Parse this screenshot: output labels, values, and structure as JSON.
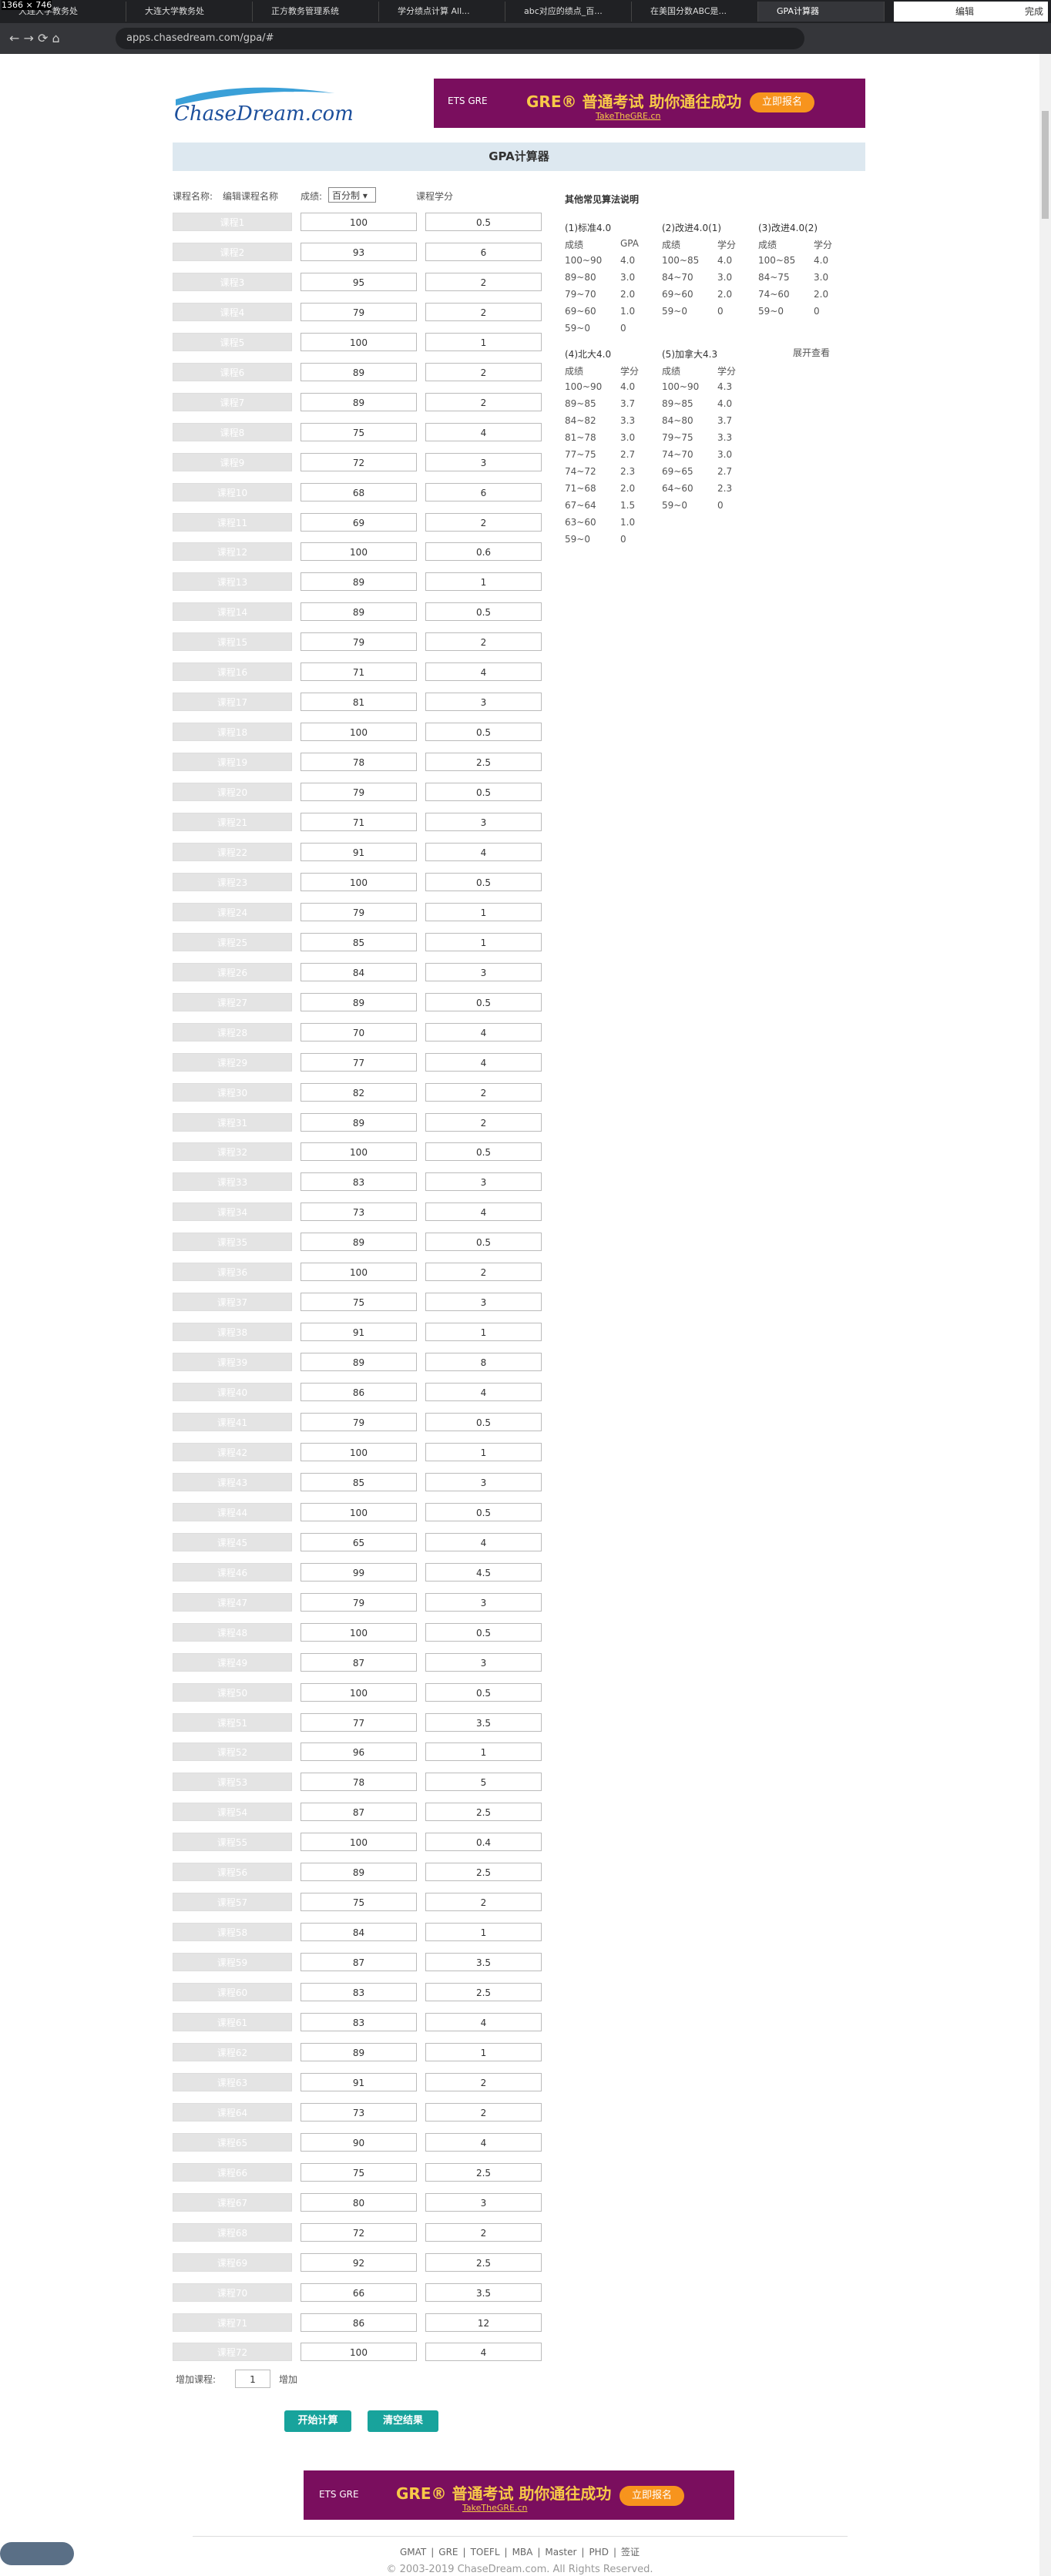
{
  "browser": {
    "size_label": "1366 × 746",
    "tabs": [
      "大连大学教务处",
      "大连大学教务处",
      "正方教务管理系统",
      "学分绩点计算 All...",
      "abc对应的绩点_百...",
      "在美国分数ABC是...",
      "GPA计算器"
    ],
    "url": "apps.chasedream.com/gpa/#",
    "right_buttons": [
      "编辑",
      "完成"
    ]
  },
  "header": {
    "logo": "ChaseDream.com",
    "banner": {
      "ets": "ETS GRE",
      "slogan": "GRE® 普通考试 助你通往成功",
      "site": "TakeTheGRE.cn",
      "button": "立即报名"
    },
    "title": "GPA计算器"
  },
  "form": {
    "name_label": "课程名称:",
    "edit_link": "编辑课程名称",
    "score_label": "成绩:",
    "score_mode": "百分制",
    "credit_label": "课程学分",
    "courses": [
      [
        "课程1",
        100,
        "0.5"
      ],
      [
        "课程2",
        93,
        "6"
      ],
      [
        "课程3",
        95,
        "2"
      ],
      [
        "课程4",
        79,
        "2"
      ],
      [
        "课程5",
        100,
        "1"
      ],
      [
        "课程6",
        89,
        "2"
      ],
      [
        "课程7",
        89,
        "2"
      ],
      [
        "课程8",
        75,
        "4"
      ],
      [
        "课程9",
        72,
        "3"
      ],
      [
        "课程10",
        68,
        "6"
      ],
      [
        "课程11",
        69,
        "2"
      ],
      [
        "课程12",
        100,
        "0.6"
      ],
      [
        "课程13",
        89,
        "1"
      ],
      [
        "课程14",
        89,
        "0.5"
      ],
      [
        "课程15",
        79,
        "2"
      ],
      [
        "课程16",
        71,
        "4"
      ],
      [
        "课程17",
        81,
        "3"
      ],
      [
        "课程18",
        100,
        "0.5"
      ],
      [
        "课程19",
        78,
        "2.5"
      ],
      [
        "课程20",
        79,
        "0.5"
      ],
      [
        "课程21",
        71,
        "3"
      ],
      [
        "课程22",
        91,
        "4"
      ],
      [
        "课程23",
        100,
        "0.5"
      ],
      [
        "课程24",
        79,
        "1"
      ],
      [
        "课程25",
        85,
        "1"
      ],
      [
        "课程26",
        84,
        "3"
      ],
      [
        "课程27",
        89,
        "0.5"
      ],
      [
        "课程28",
        70,
        "4"
      ],
      [
        "课程29",
        77,
        "4"
      ],
      [
        "课程30",
        82,
        "2"
      ],
      [
        "课程31",
        89,
        "2"
      ],
      [
        "课程32",
        100,
        "0.5"
      ],
      [
        "课程33",
        83,
        "3"
      ],
      [
        "课程34",
        73,
        "4"
      ],
      [
        "课程35",
        89,
        "0.5"
      ],
      [
        "课程36",
        100,
        "2"
      ],
      [
        "课程37",
        75,
        "3"
      ],
      [
        "课程38",
        91,
        "1"
      ],
      [
        "课程39",
        89,
        "8"
      ],
      [
        "课程40",
        86,
        "4"
      ],
      [
        "课程41",
        79,
        "0.5"
      ],
      [
        "课程42",
        100,
        "1"
      ],
      [
        "课程43",
        85,
        "3"
      ],
      [
        "课程44",
        100,
        "0.5"
      ],
      [
        "课程45",
        65,
        "4"
      ],
      [
        "课程46",
        99,
        "4.5"
      ],
      [
        "课程47",
        79,
        "3"
      ],
      [
        "课程48",
        100,
        "0.5"
      ],
      [
        "课程49",
        87,
        "3"
      ],
      [
        "课程50",
        100,
        "0.5"
      ],
      [
        "课程51",
        77,
        "3.5"
      ],
      [
        "课程52",
        96,
        "1"
      ],
      [
        "课程53",
        78,
        "5"
      ],
      [
        "课程54",
        87,
        "2.5"
      ],
      [
        "课程55",
        100,
        "0.4"
      ],
      [
        "课程56",
        89,
        "2.5"
      ],
      [
        "课程57",
        75,
        "2"
      ],
      [
        "课程58",
        84,
        "1"
      ],
      [
        "课程59",
        87,
        "3.5"
      ],
      [
        "课程60",
        83,
        "2.5"
      ],
      [
        "课程61",
        83,
        "4"
      ],
      [
        "课程62",
        89,
        "1"
      ],
      [
        "课程63",
        91,
        "2"
      ],
      [
        "课程64",
        73,
        "2"
      ],
      [
        "课程65",
        90,
        "4"
      ],
      [
        "课程66",
        75,
        "2.5"
      ],
      [
        "课程67",
        80,
        "3"
      ],
      [
        "课程68",
        72,
        "2"
      ],
      [
        "课程69",
        92,
        "2.5"
      ],
      [
        "课程70",
        66,
        "3.5"
      ],
      [
        "课程71",
        86,
        "12"
      ],
      [
        "课程72",
        100,
        "4"
      ]
    ],
    "add_label": "增加课程:",
    "add_count": 1,
    "add_link": "增加",
    "calc_button": "开始计算",
    "clear_button": "清空结果"
  },
  "methods": {
    "title": "其他常见算法说明",
    "expand": "展开查看",
    "tables": [
      {
        "name": "(1)标准4.0",
        "head": [
          "成绩",
          "GPA"
        ],
        "rows": [
          [
            "100~90",
            "4.0"
          ],
          [
            "89~80",
            "3.0"
          ],
          [
            "79~70",
            "2.0"
          ],
          [
            "69~60",
            "1.0"
          ],
          [
            "59~0",
            "0"
          ]
        ]
      },
      {
        "name": "(2)改进4.0(1)",
        "head": [
          "成绩",
          "学分"
        ],
        "rows": [
          [
            "100~85",
            "4.0"
          ],
          [
            "84~70",
            "3.0"
          ],
          [
            "69~60",
            "2.0"
          ],
          [
            "59~0",
            "0"
          ]
        ]
      },
      {
        "name": "(3)改进4.0(2)",
        "head": [
          "成绩",
          "学分"
        ],
        "rows": [
          [
            "100~85",
            "4.0"
          ],
          [
            "84~75",
            "3.0"
          ],
          [
            "74~60",
            "2.0"
          ],
          [
            "59~0",
            "0"
          ]
        ]
      },
      {
        "name": "(4)北大4.0",
        "head": [
          "成绩",
          "学分"
        ],
        "rows": [
          [
            "100~90",
            "4.0"
          ],
          [
            "89~85",
            "3.7"
          ],
          [
            "84~82",
            "3.3"
          ],
          [
            "81~78",
            "3.0"
          ],
          [
            "77~75",
            "2.7"
          ],
          [
            "74~72",
            "2.3"
          ],
          [
            "71~68",
            "2.0"
          ],
          [
            "67~64",
            "1.5"
          ],
          [
            "63~60",
            "1.0"
          ],
          [
            "59~0",
            "0"
          ]
        ]
      },
      {
        "name": "(5)加拿大4.3",
        "head": [
          "成绩",
          "学分"
        ],
        "rows": [
          [
            "100~90",
            "4.3"
          ],
          [
            "89~85",
            "4.0"
          ],
          [
            "84~80",
            "3.7"
          ],
          [
            "79~75",
            "3.3"
          ],
          [
            "74~70",
            "3.0"
          ],
          [
            "69~65",
            "2.7"
          ],
          [
            "64~60",
            "2.3"
          ],
          [
            "59~0",
            "0"
          ]
        ]
      }
    ]
  },
  "footer": {
    "links": [
      "GMAT",
      "GRE",
      "TOEFL",
      "MBA",
      "Master",
      "PHD",
      "签证"
    ],
    "copyright": "© 2003-2019 ChaseDream.com. All Rights Reserved."
  }
}
